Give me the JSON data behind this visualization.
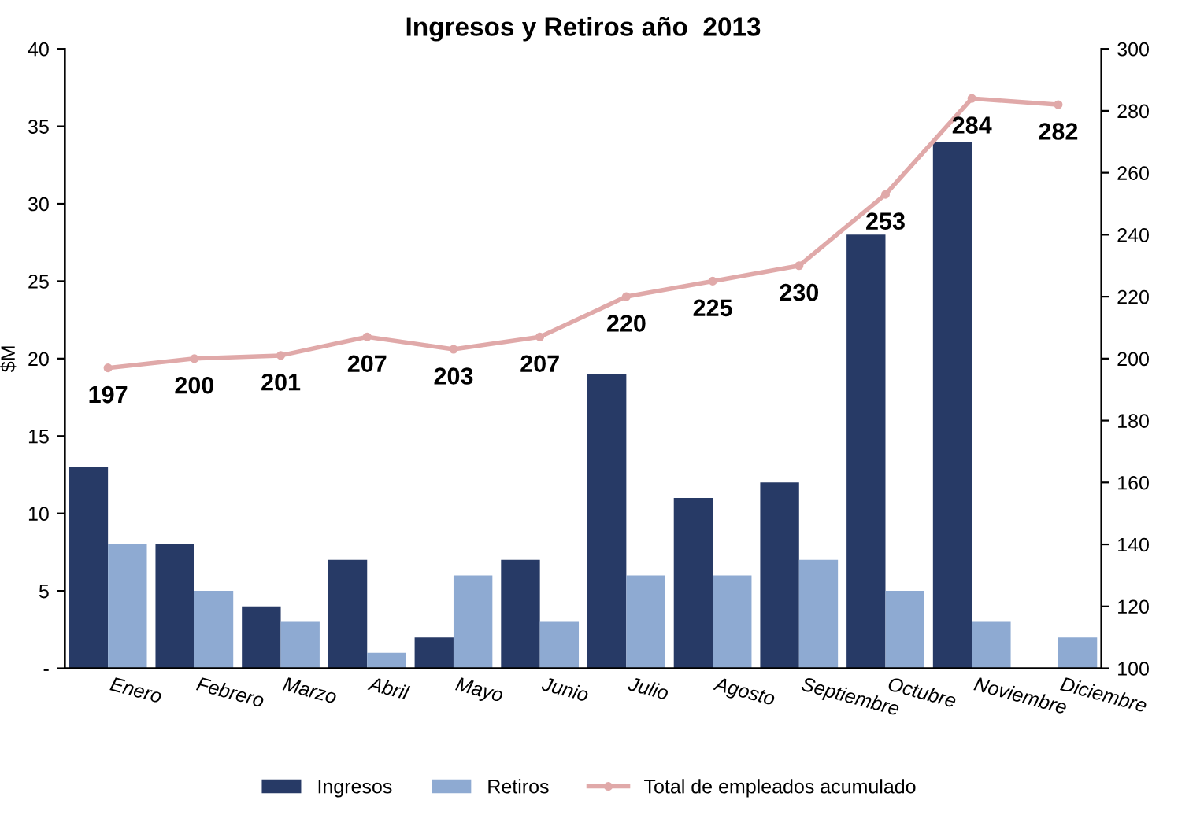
{
  "chart_data": {
    "type": "bar",
    "title": "Ingresos y Retiros año  2013",
    "categories": [
      "Enero",
      "Febrero",
      "Marzo",
      "Abril",
      "Mayo",
      "Junio",
      "Julio",
      "Agosto",
      "Septiembre",
      "Octubre",
      "Noviembre",
      "Diciembre"
    ],
    "series": [
      {
        "name": "Ingresos",
        "color": "#273a66",
        "values": [
          13,
          8,
          4,
          7,
          2,
          7,
          19,
          11,
          12,
          28,
          34,
          0
        ]
      },
      {
        "name": "Retiros",
        "color": "#8eaad2",
        "values": [
          8,
          5,
          3,
          1,
          6,
          3,
          6,
          6,
          7,
          5,
          3,
          2
        ]
      },
      {
        "name": "Total de empleados acumulado",
        "type": "line",
        "axis": "y2",
        "color": "#e0a9a9",
        "marker": "circle",
        "values": [
          197,
          200,
          201,
          207,
          203,
          207,
          220,
          225,
          230,
          253,
          284,
          282
        ],
        "value_labels": [
          "197",
          "200",
          "201",
          "207",
          "203",
          "207",
          "220",
          "225",
          "230",
          "253",
          "284",
          "282"
        ]
      }
    ],
    "ylabel": "$M",
    "ylim": [
      0,
      40
    ],
    "yticks": [
      {
        "value": 0,
        "label": "-"
      },
      5,
      10,
      15,
      20,
      25,
      30,
      35,
      40
    ],
    "y2lim": [
      100,
      300
    ],
    "y2ticks": [
      100,
      120,
      140,
      160,
      180,
      200,
      220,
      240,
      260,
      280,
      300
    ],
    "grid": false,
    "legend": "bottom"
  }
}
